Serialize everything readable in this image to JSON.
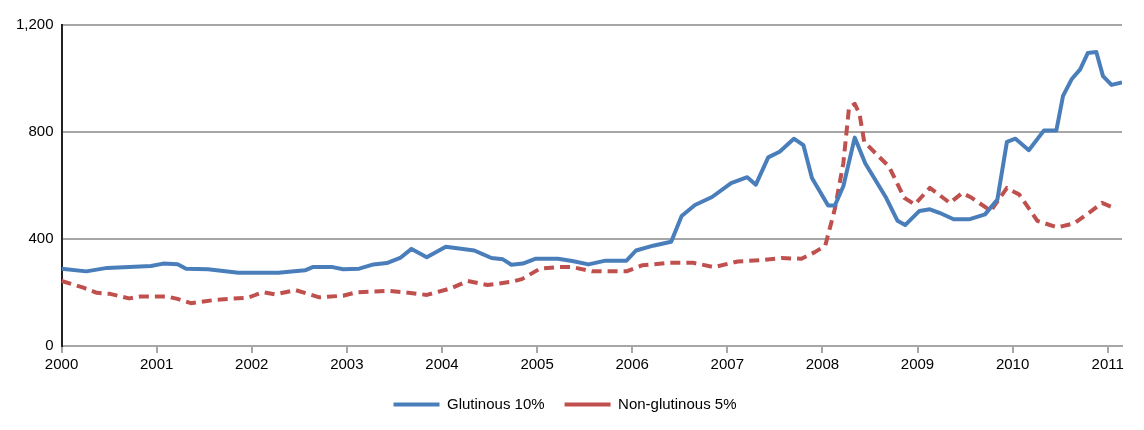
{
  "chart_data": {
    "type": "line",
    "xlim": [
      2000,
      2011.15
    ],
    "xticks": [
      2000,
      2001,
      2002,
      2003,
      2004,
      2005,
      2006,
      2007,
      2008,
      2009,
      2010,
      2011
    ],
    "ylim": [
      0,
      1200
    ],
    "yticks": [
      0,
      400,
      800,
      {
        "value": 1200,
        "label": "1,200"
      }
    ],
    "grid": "y",
    "legend": "bottom",
    "series": [
      {
        "name": "Glutinous 10%",
        "color": "#4a7ebb",
        "line_style": "solid",
        "x": [
          2000,
          2000.26,
          2000.48,
          2000.94,
          2001.07,
          2001.22,
          2001.31,
          2001.54,
          2001.86,
          2002.28,
          2002.56,
          2002.64,
          2002.85,
          2002.96,
          2003.13,
          2003.28,
          2003.42,
          2003.56,
          2003.68,
          2003.84,
          2004.04,
          2004.34,
          2004.52,
          2004.64,
          2004.73,
          2004.85,
          2004.98,
          2005.22,
          2005.37,
          2005.54,
          2005.72,
          2005.94,
          2006.04,
          2006.22,
          2006.41,
          2006.52,
          2006.66,
          2006.84,
          2007.04,
          2007.21,
          2007.3,
          2007.43,
          2007.55,
          2007.7,
          2007.8,
          2007.89,
          2008.06,
          2008.13,
          2008.22,
          2008.34,
          2008.45,
          2008.67,
          2008.79,
          2008.87,
          2009.02,
          2009.13,
          2009.23,
          2009.38,
          2009.55,
          2009.71,
          2009.84,
          2009.94,
          2010.03,
          2010.17,
          2010.33,
          2010.46,
          2010.53,
          2010.62,
          2010.71,
          2010.79,
          2010.88,
          2010.95,
          2011.04,
          2011.15
        ],
        "values": [
          289,
          279,
          292,
          299,
          308,
          306,
          289,
          287,
          274,
          274,
          283,
          295,
          295,
          287,
          289,
          305,
          310,
          329,
          363,
          332,
          371,
          357,
          329,
          324,
          304,
          308,
          326,
          326,
          318,
          305,
          319,
          319,
          357,
          375,
          390,
          486,
          527,
          557,
          609,
          631,
          603,
          705,
          726,
          775,
          751,
          628,
          525,
          525,
          597,
          779,
          683,
          554,
          468,
          452,
          505,
          511,
          498,
          474,
          474,
          492,
          548,
          763,
          775,
          732,
          806,
          806,
          935,
          997,
          1034,
          1095,
          1099,
          1009,
          976,
          985
        ]
      },
      {
        "name": "Non-glutinous 5%",
        "color": "#c0504d",
        "line_style": "dashed",
        "x": [
          2000,
          2000.23,
          2000.37,
          2000.51,
          2000.71,
          2000.83,
          2001.11,
          2001.22,
          2001.36,
          2001.61,
          2001.96,
          2002.12,
          2002.25,
          2002.46,
          2002.71,
          2002.96,
          2003.1,
          2003.45,
          2003.6,
          2003.84,
          2004.09,
          2004.27,
          2004.48,
          2004.73,
          2004.84,
          2005.03,
          2005.23,
          2005.37,
          2005.58,
          2005.94,
          2006.11,
          2006.39,
          2006.64,
          2006.86,
          2007.11,
          2007.39,
          2007.57,
          2007.78,
          2007.92,
          2008.03,
          2008.13,
          2008.22,
          2008.28,
          2008.34,
          2008.39,
          2008.44,
          2008.56,
          2008.7,
          2008.86,
          2008.97,
          2009.13,
          2009.34,
          2009.47,
          2009.57,
          2009.77,
          2009.94,
          2010.07,
          2010.26,
          2010.47,
          2010.65,
          2010.83,
          2010.94,
          2011.06
        ],
        "values": [
          243,
          218,
          199,
          195,
          178,
          185,
          185,
          176,
          160,
          172,
          181,
          201,
          193,
          209,
          182,
          188,
          201,
          206,
          201,
          191,
          215,
          243,
          228,
          240,
          250,
          289,
          295,
          295,
          279,
          279,
          302,
          311,
          311,
          295,
          316,
          322,
          329,
          326,
          351,
          375,
          511,
          683,
          892,
          905,
          868,
          763,
          720,
          671,
          554,
          529,
          591,
          535,
          572,
          554,
          505,
          591,
          566,
          468,
          443,
          459,
          505,
          535,
          517
        ]
      }
    ]
  }
}
